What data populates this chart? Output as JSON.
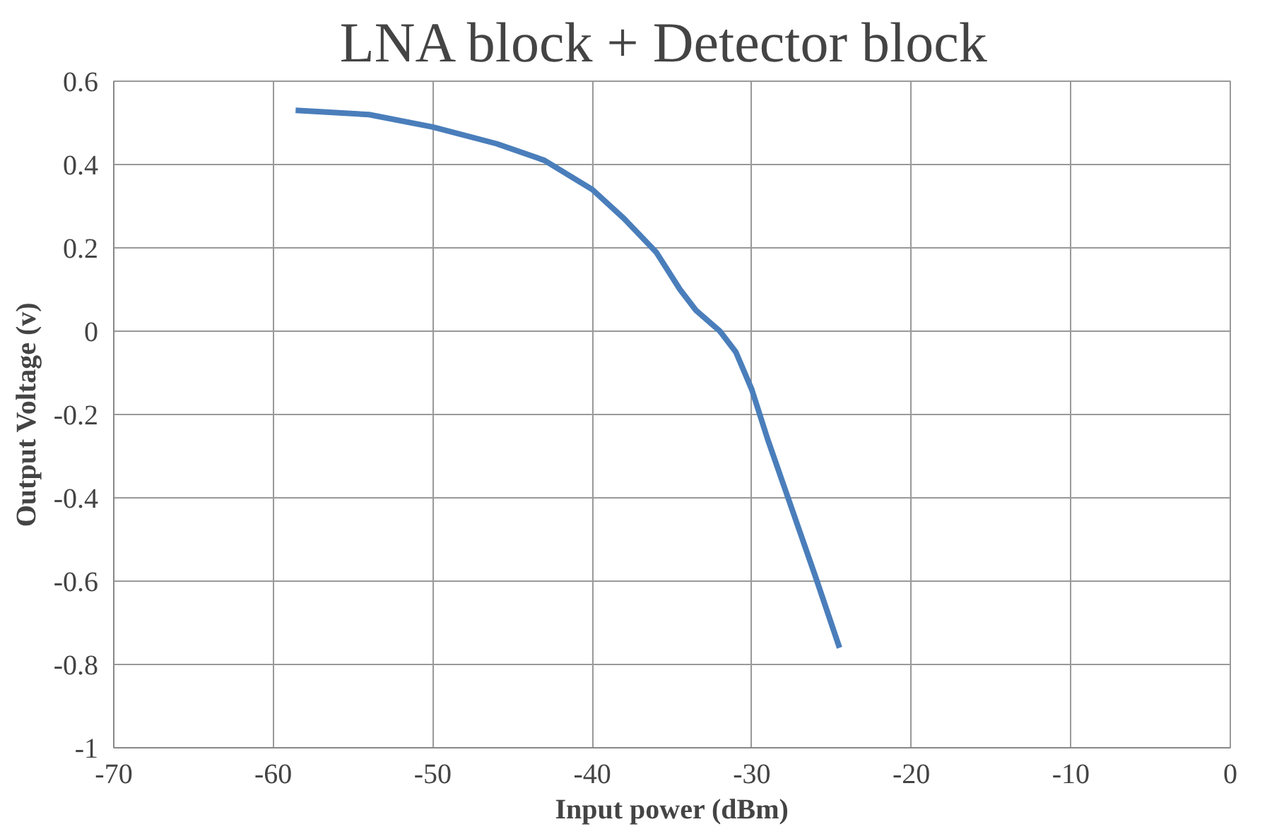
{
  "chart_data": {
    "type": "line",
    "title": "LNA block +  Detector block",
    "xlabel": "Input power (dBm)",
    "ylabel": "Output Voltage (v)",
    "x": [
      -58.6,
      -54,
      -50,
      -46,
      -43,
      -40,
      -38,
      -36,
      -34.5,
      -33.5,
      -32,
      -31,
      -30,
      -29,
      -28,
      -27,
      -26,
      -24.5
    ],
    "series": [
      {
        "color": "#4a7ebb",
        "values": [
          0.53,
          0.52,
          0.49,
          0.45,
          0.41,
          0.34,
          0.27,
          0.19,
          0.1,
          0.05,
          0.0,
          -0.05,
          -0.14,
          -0.26,
          -0.37,
          -0.48,
          -0.59,
          -0.76
        ]
      }
    ],
    "xlim": [
      -70,
      0
    ],
    "xticks": [
      -70,
      -60,
      -50,
      -40,
      -30,
      -20,
      -10,
      0
    ],
    "ylim": [
      -1,
      0.6
    ],
    "yticks": [
      -1,
      -0.8,
      -0.6,
      -0.4,
      -0.2,
      0,
      0.2,
      0.4,
      0.6
    ],
    "grid": true,
    "marker": "none",
    "line_style": "solid"
  }
}
